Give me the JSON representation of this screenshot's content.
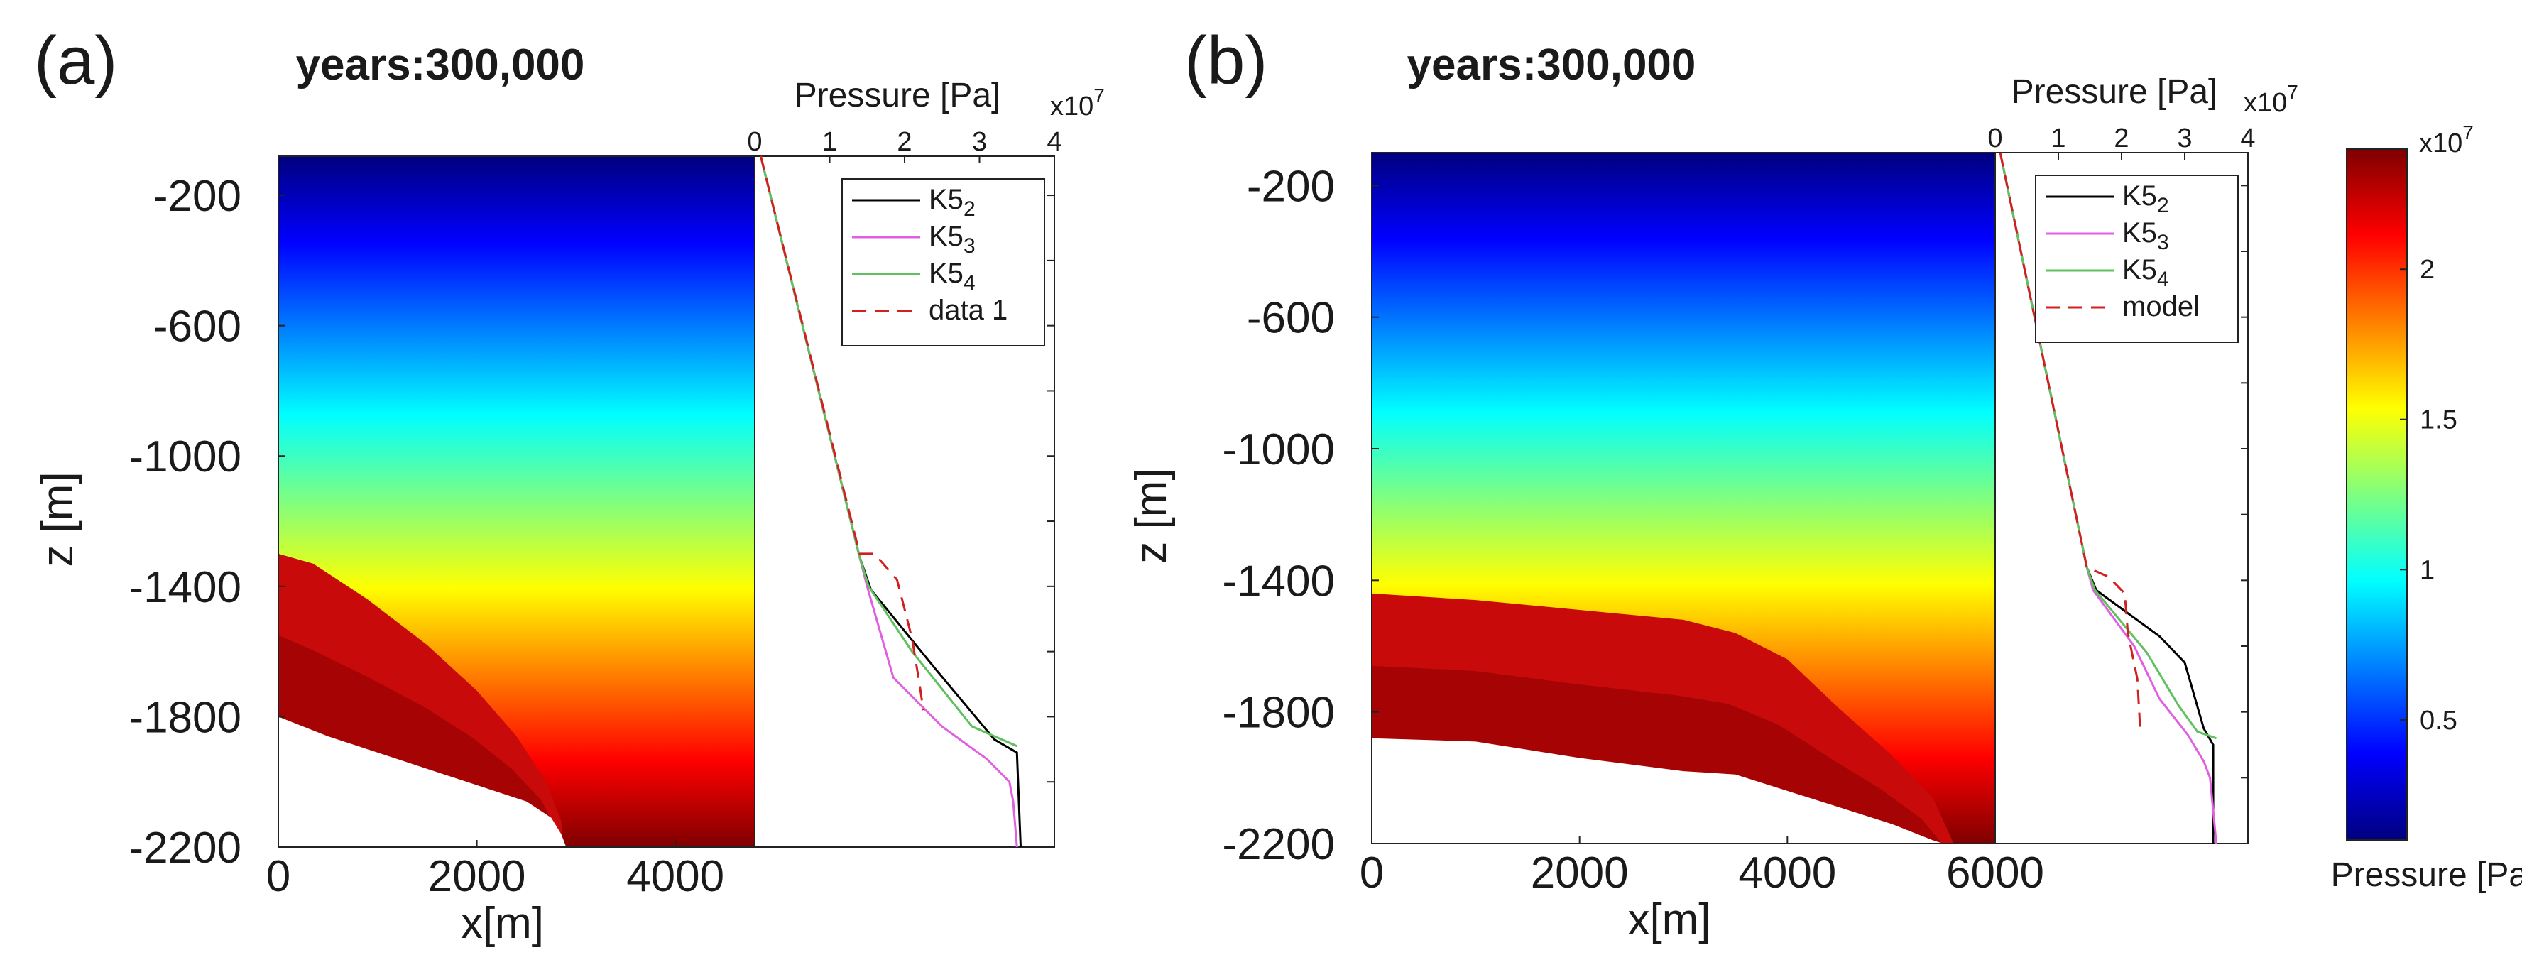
{
  "figure": {
    "colormap": [
      "#00007f",
      "#0000ff",
      "#007fff",
      "#00ffff",
      "#7fff7f",
      "#ffff00",
      "#ff7f00",
      "#ff0000",
      "#7f0000"
    ],
    "colorbar": {
      "ticks": [
        "0.5",
        "1",
        "1.5",
        "2"
      ],
      "values": [
        0.5,
        1,
        1.5,
        2
      ],
      "range": [
        0.1,
        2.4
      ],
      "exponent": "x10",
      "exponent_power": "7",
      "label": "Pressure [Pa]"
    }
  },
  "chart_data": [
    {
      "type": "heatmap",
      "panel": "(a)",
      "title": "years:300,000",
      "xlabel": "x[m]",
      "ylabel": "z [m]",
      "xlim": [
        0,
        4800
      ],
      "ylim": [
        -2200,
        -80
      ],
      "xticks": [
        "0",
        "2000",
        "4000"
      ],
      "yticks": [
        "-200",
        "-600",
        "-1000",
        "-1400",
        "-1800",
        "-2200"
      ],
      "field": "pressure increasing with depth; high-pressure zone below a sloping front",
      "pressure_scale": [
        0.1,
        2.4
      ],
      "high_zone_top": [
        [
          0,
          -1300
        ],
        [
          350,
          -1330
        ],
        [
          900,
          -1440
        ],
        [
          1500,
          -1580
        ],
        [
          2000,
          -1720
        ],
        [
          2400,
          -1860
        ],
        [
          2700,
          -2000
        ],
        [
          2850,
          -2120
        ],
        [
          2870,
          -2200
        ]
      ],
      "unfilled_boundary": [
        [
          0,
          -1800
        ],
        [
          500,
          -1860
        ],
        [
          1000,
          -1910
        ],
        [
          1500,
          -1960
        ],
        [
          2000,
          -2010
        ],
        [
          2500,
          -2060
        ],
        [
          2750,
          -2110
        ],
        [
          2850,
          -2160
        ],
        [
          2900,
          -2200
        ]
      ]
    },
    {
      "type": "line",
      "panel": "(a)",
      "title": "",
      "xlabel": "Pressure [Pa]",
      "ylabel": "",
      "xlim": [
        0,
        4
      ],
      "ylim": [
        -2200,
        -80
      ],
      "xticks": [
        "0",
        "1",
        "2",
        "3",
        "4"
      ],
      "x_exponent": "x10",
      "x_exponent_power": "7",
      "legend": "top-right",
      "series": [
        {
          "name": "K5",
          "sub": "2",
          "color": "#000000",
          "dash": "",
          "x": [
            0.08,
            1.4,
            1.55,
            2.4,
            3.2,
            3.5,
            3.55
          ],
          "y": [
            -80,
            -1310,
            -1410,
            -1650,
            -1870,
            -1910,
            -2200
          ]
        },
        {
          "name": "K5",
          "sub": "3",
          "color": "#e060e0",
          "dash": "",
          "x": [
            0.08,
            1.4,
            1.5,
            1.85,
            2.5,
            3.1,
            3.4,
            3.45,
            3.5
          ],
          "y": [
            -80,
            -1310,
            -1400,
            -1680,
            -1830,
            -1930,
            -2000,
            -2060,
            -2200
          ]
        },
        {
          "name": "K5",
          "sub": "4",
          "color": "#60c060",
          "dash": "",
          "x": [
            0.08,
            1.4,
            1.52,
            2.1,
            2.9,
            3.5
          ],
          "y": [
            -80,
            -1310,
            -1400,
            -1600,
            -1830,
            -1890
          ]
        },
        {
          "name": "data 1",
          "sub": "",
          "color": "#d02020",
          "dash": "20,12",
          "x": [
            0.08,
            1.4,
            1.6,
            1.9,
            2.1,
            2.2,
            2.25
          ],
          "y": [
            -80,
            -1300,
            -1300,
            -1380,
            -1560,
            -1700,
            -1780
          ]
        }
      ]
    },
    {
      "type": "heatmap",
      "panel": "(b)",
      "title": "years:300,000",
      "xlabel": "x[m]",
      "ylabel": "z [m]",
      "xlim": [
        0,
        6000
      ],
      "ylim": [
        -2200,
        -100
      ],
      "xticks": [
        "0",
        "2000",
        "4000",
        "6000"
      ],
      "yticks": [
        "-200",
        "-600",
        "-1000",
        "-1400",
        "-1800",
        "-2200"
      ],
      "field": "pressure increasing with depth; high-pressure zone below a flatter front",
      "pressure_scale": [
        0.1,
        2.4
      ],
      "high_zone_top": [
        [
          0,
          -1440
        ],
        [
          1000,
          -1460
        ],
        [
          2000,
          -1490
        ],
        [
          3000,
          -1520
        ],
        [
          3500,
          -1560
        ],
        [
          4000,
          -1640
        ],
        [
          4500,
          -1790
        ],
        [
          5000,
          -1930
        ],
        [
          5400,
          -2060
        ],
        [
          5600,
          -2200
        ]
      ],
      "unfilled_boundary": [
        [
          0,
          -1880
        ],
        [
          1000,
          -1890
        ],
        [
          2000,
          -1940
        ],
        [
          3000,
          -1980
        ],
        [
          3500,
          -1990
        ],
        [
          4000,
          -2040
        ],
        [
          4500,
          -2090
        ],
        [
          5000,
          -2140
        ],
        [
          5400,
          -2190
        ],
        [
          5500,
          -2200
        ]
      ]
    },
    {
      "type": "line",
      "panel": "(b)",
      "title": "",
      "xlabel": "Pressure [Pa]",
      "ylabel": "",
      "xlim": [
        0,
        4
      ],
      "ylim": [
        -2200,
        -100
      ],
      "xticks": [
        "0",
        "1",
        "2",
        "3",
        "4"
      ],
      "x_exponent": "x10",
      "x_exponent_power": "7",
      "legend": "top-right",
      "series": [
        {
          "name": "K5",
          "sub": "2",
          "color": "#000000",
          "dash": "",
          "x": [
            0.08,
            1.45,
            1.6,
            2.6,
            3.0,
            3.3,
            3.45,
            3.45
          ],
          "y": [
            -100,
            -1360,
            -1430,
            -1570,
            -1650,
            -1850,
            -1900,
            -2200
          ]
        },
        {
          "name": "K5",
          "sub": "3",
          "color": "#e060e0",
          "dash": "",
          "x": [
            0.08,
            1.45,
            1.55,
            2.2,
            2.6,
            3.05,
            3.3,
            3.4,
            3.5
          ],
          "y": [
            -100,
            -1360,
            -1430,
            -1600,
            -1760,
            -1870,
            -1950,
            -2000,
            -2200
          ]
        },
        {
          "name": "K5",
          "sub": "4",
          "color": "#60c060",
          "dash": "",
          "x": [
            0.08,
            1.45,
            1.58,
            2.4,
            2.9,
            3.2,
            3.5
          ],
          "y": [
            -100,
            -1360,
            -1430,
            -1620,
            -1780,
            -1860,
            -1880
          ]
        },
        {
          "name": "model",
          "sub": "",
          "color": "#d02020",
          "dash": "20,12",
          "x": [
            0.08,
            1.45,
            1.8,
            2.05,
            2.1,
            2.25,
            2.3
          ],
          "y": [
            -100,
            -1360,
            -1390,
            -1440,
            -1560,
            -1700,
            -1870
          ]
        }
      ]
    }
  ]
}
